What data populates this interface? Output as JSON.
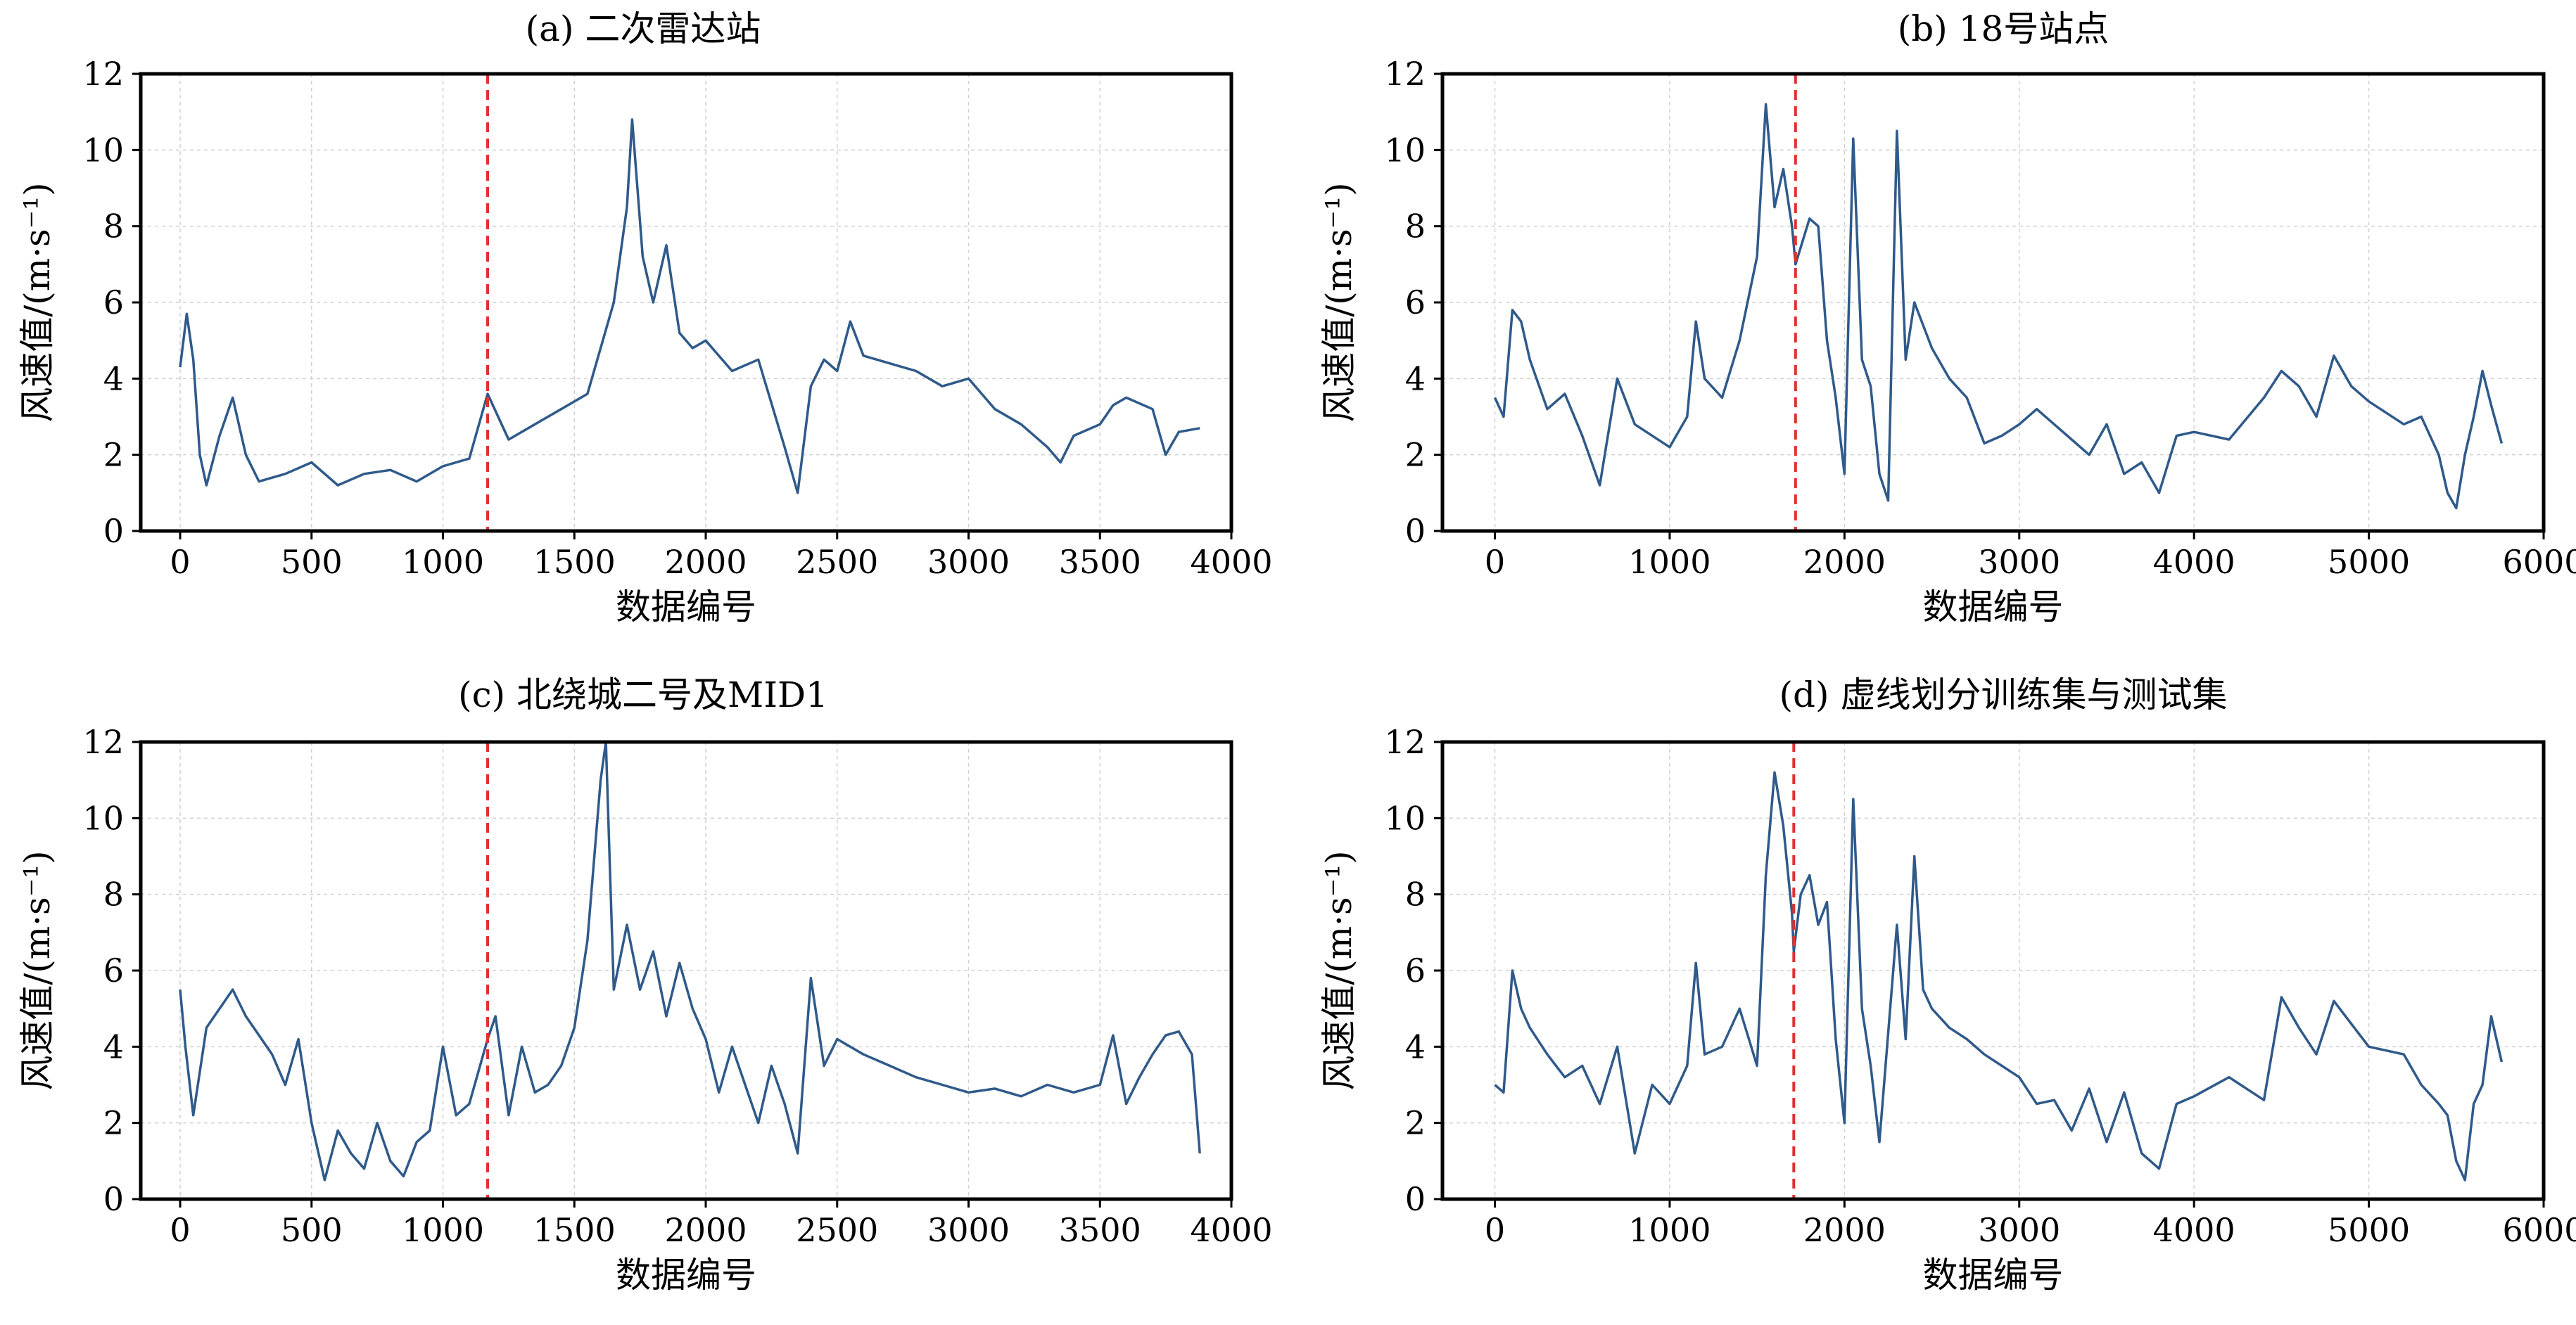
{
  "series_color": "#2f5a8a",
  "split_color": "#e03030",
  "grid_color": "#d0d0d0",
  "chart_data": [
    {
      "type": "line",
      "title": "(a) 二次雷达站",
      "xlabel": "数据编号",
      "ylabel": "风速值/(m·s⁻¹)",
      "xlim": [
        -150,
        4000
      ],
      "ylim": [
        0,
        12
      ],
      "xticks": [
        "0",
        "500",
        "1000",
        "1500",
        "2000",
        "2500",
        "3000",
        "3500",
        "4000"
      ],
      "yticks": [
        "0",
        "2",
        "4",
        "6",
        "8",
        "10",
        "12"
      ],
      "split_x": 1170,
      "x": [
        0,
        25,
        50,
        75,
        100,
        150,
        200,
        250,
        300,
        400,
        500,
        600,
        700,
        800,
        900,
        1000,
        1100,
        1170,
        1250,
        1350,
        1450,
        1550,
        1650,
        1700,
        1720,
        1760,
        1800,
        1850,
        1900,
        1950,
        2000,
        2100,
        2200,
        2300,
        2350,
        2400,
        2450,
        2500,
        2550,
        2600,
        2700,
        2800,
        2900,
        3000,
        3100,
        3200,
        3300,
        3350,
        3400,
        3500,
        3550,
        3600,
        3700,
        3750,
        3800,
        3880
      ],
      "values": [
        4.3,
        5.7,
        4.5,
        2.0,
        1.2,
        2.5,
        3.5,
        2.0,
        1.3,
        1.5,
        1.8,
        1.2,
        1.5,
        1.6,
        1.3,
        1.7,
        1.9,
        3.6,
        2.4,
        2.8,
        3.2,
        3.6,
        6.0,
        8.5,
        10.8,
        7.2,
        6.0,
        7.5,
        5.2,
        4.8,
        5.0,
        4.2,
        4.5,
        2.2,
        1.0,
        3.8,
        4.5,
        4.2,
        5.5,
        4.6,
        4.4,
        4.2,
        3.8,
        4.0,
        3.2,
        2.8,
        2.2,
        1.8,
        2.5,
        2.8,
        3.3,
        3.5,
        3.2,
        2.0,
        2.6,
        2.7
      ]
    },
    {
      "type": "line",
      "title": "(b) 18号站点",
      "xlabel": "数据编号",
      "ylabel": "风速值/(m·s⁻¹)",
      "xlim": [
        -300,
        6000
      ],
      "ylim": [
        0,
        12
      ],
      "xticks": [
        "0",
        "1000",
        "2000",
        "3000",
        "4000",
        "5000",
        "6000"
      ],
      "yticks": [
        "0",
        "2",
        "4",
        "6",
        "8",
        "10",
        "12"
      ],
      "split_x": 1720,
      "x": [
        0,
        50,
        100,
        150,
        200,
        300,
        400,
        500,
        600,
        700,
        800,
        900,
        1000,
        1100,
        1150,
        1200,
        1300,
        1400,
        1500,
        1550,
        1600,
        1650,
        1700,
        1720,
        1800,
        1850,
        1900,
        1950,
        2000,
        2050,
        2100,
        2150,
        2200,
        2250,
        2300,
        2350,
        2400,
        2500,
        2600,
        2700,
        2800,
        2900,
        3000,
        3100,
        3200,
        3300,
        3400,
        3500,
        3600,
        3700,
        3800,
        3900,
        4000,
        4200,
        4400,
        4500,
        4600,
        4700,
        4800,
        4900,
        5000,
        5200,
        5300,
        5400,
        5450,
        5500,
        5550,
        5600,
        5650,
        5700,
        5760
      ],
      "values": [
        3.5,
        3.0,
        5.8,
        5.5,
        4.5,
        3.2,
        3.6,
        2.5,
        1.2,
        4.0,
        2.8,
        2.5,
        2.2,
        3.0,
        5.5,
        4.0,
        3.5,
        5.0,
        7.2,
        11.2,
        8.5,
        9.5,
        8.0,
        7.0,
        8.2,
        8.0,
        5.0,
        3.5,
        1.5,
        10.3,
        4.5,
        3.8,
        1.5,
        0.8,
        10.5,
        4.5,
        6.0,
        4.8,
        4.0,
        3.5,
        2.3,
        2.5,
        2.8,
        3.2,
        2.8,
        2.4,
        2.0,
        2.8,
        1.5,
        1.8,
        1.0,
        2.5,
        2.6,
        2.4,
        3.5,
        4.2,
        3.8,
        3.0,
        4.6,
        3.8,
        3.4,
        2.8,
        3.0,
        2.0,
        1.0,
        0.6,
        2.0,
        3.0,
        4.2,
        3.3,
        2.3
      ]
    },
    {
      "type": "line",
      "title": "(c) 北绕城二号及MID1",
      "xlabel": "数据编号",
      "ylabel": "风速值/(m·s⁻¹)",
      "xlim": [
        -150,
        4000
      ],
      "ylim": [
        0,
        12
      ],
      "xticks": [
        "0",
        "500",
        "1000",
        "1500",
        "2000",
        "2500",
        "3000",
        "3500",
        "4000"
      ],
      "yticks": [
        "0",
        "2",
        "4",
        "6",
        "8",
        "10",
        "12"
      ],
      "split_x": 1170,
      "x": [
        0,
        20,
        50,
        100,
        150,
        200,
        250,
        300,
        350,
        400,
        450,
        500,
        550,
        600,
        650,
        700,
        750,
        800,
        850,
        900,
        950,
        1000,
        1050,
        1100,
        1170,
        1200,
        1250,
        1300,
        1350,
        1400,
        1450,
        1500,
        1550,
        1600,
        1620,
        1650,
        1700,
        1750,
        1800,
        1850,
        1900,
        1950,
        2000,
        2050,
        2100,
        2150,
        2200,
        2250,
        2300,
        2350,
        2400,
        2450,
        2500,
        2600,
        2700,
        2800,
        2900,
        3000,
        3100,
        3200,
        3300,
        3400,
        3500,
        3550,
        3600,
        3650,
        3700,
        3750,
        3800,
        3850,
        3880
      ],
      "values": [
        5.5,
        4.0,
        2.2,
        4.5,
        5.0,
        5.5,
        4.8,
        4.3,
        3.8,
        3.0,
        4.2,
        2.0,
        0.5,
        1.8,
        1.2,
        0.8,
        2.0,
        1.0,
        0.6,
        1.5,
        1.8,
        4.0,
        2.2,
        2.5,
        4.2,
        4.8,
        2.2,
        4.0,
        2.8,
        3.0,
        3.5,
        4.5,
        6.8,
        11.0,
        12.0,
        5.5,
        7.2,
        5.5,
        6.5,
        4.8,
        6.2,
        5.0,
        4.2,
        2.8,
        4.0,
        3.0,
        2.0,
        3.5,
        2.5,
        1.2,
        5.8,
        3.5,
        4.2,
        3.8,
        3.5,
        3.2,
        3.0,
        2.8,
        2.9,
        2.7,
        3.0,
        2.8,
        3.0,
        4.3,
        2.5,
        3.2,
        3.8,
        4.3,
        4.4,
        3.8,
        1.2
      ]
    },
    {
      "type": "line",
      "title": "(d) 虚线划分训练集与测试集",
      "xlabel": "数据编号",
      "ylabel": "风速值/(m·s⁻¹)",
      "xlim": [
        -300,
        6000
      ],
      "ylim": [
        0,
        12
      ],
      "xticks": [
        "0",
        "1000",
        "2000",
        "3000",
        "4000",
        "5000",
        "6000"
      ],
      "yticks": [
        "0",
        "2",
        "4",
        "6",
        "8",
        "10",
        "12"
      ],
      "split_x": 1710,
      "x": [
        0,
        50,
        100,
        150,
        200,
        300,
        400,
        500,
        600,
        700,
        800,
        900,
        1000,
        1100,
        1150,
        1200,
        1300,
        1400,
        1500,
        1550,
        1600,
        1650,
        1700,
        1710,
        1750,
        1800,
        1850,
        1900,
        1950,
        2000,
        2050,
        2100,
        2150,
        2200,
        2300,
        2350,
        2400,
        2450,
        2500,
        2600,
        2700,
        2800,
        2900,
        3000,
        3100,
        3200,
        3300,
        3400,
        3500,
        3600,
        3700,
        3800,
        3900,
        4000,
        4200,
        4400,
        4500,
        4600,
        4700,
        4800,
        4900,
        5000,
        5200,
        5300,
        5400,
        5450,
        5500,
        5550,
        5600,
        5650,
        5700,
        5760
      ],
      "values": [
        3.0,
        2.8,
        6.0,
        5.0,
        4.5,
        3.8,
        3.2,
        3.5,
        2.5,
        4.0,
        1.2,
        3.0,
        2.5,
        3.5,
        6.2,
        3.8,
        4.0,
        5.0,
        3.5,
        8.5,
        11.2,
        9.8,
        7.5,
        6.5,
        8.0,
        8.5,
        7.2,
        7.8,
        4.2,
        2.0,
        10.5,
        5.0,
        3.5,
        1.5,
        7.2,
        4.2,
        9.0,
        5.5,
        5.0,
        4.5,
        4.2,
        3.8,
        3.5,
        3.2,
        2.5,
        2.6,
        1.8,
        2.9,
        1.5,
        2.8,
        1.2,
        0.8,
        2.5,
        2.7,
        3.2,
        2.6,
        5.3,
        4.5,
        3.8,
        5.2,
        4.6,
        4.0,
        3.8,
        3.0,
        2.5,
        2.2,
        1.0,
        0.5,
        2.5,
        3.0,
        4.8,
        3.6
      ]
    }
  ]
}
